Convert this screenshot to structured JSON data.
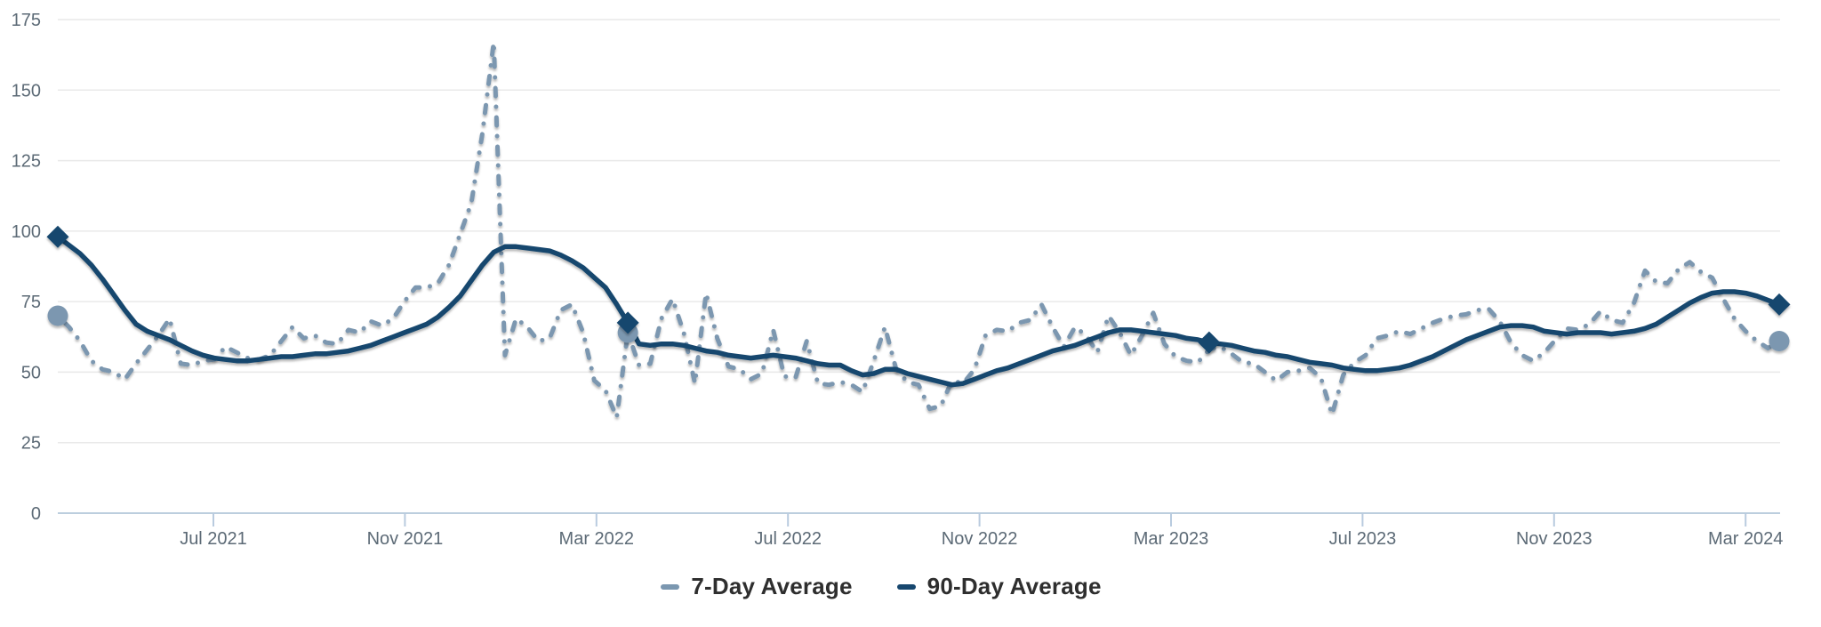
{
  "chart_data": {
    "type": "line",
    "title": "",
    "xlabel": "",
    "ylabel": "",
    "ylim": [
      0,
      175
    ],
    "grid": true,
    "legend_position": "bottom",
    "x_tick_labels": [
      "Jul 2021",
      "Nov 2021",
      "Mar 2022",
      "Jul 2022",
      "Nov 2022",
      "Mar 2023",
      "Jul 2023",
      "Nov 2023",
      "Mar 2024"
    ],
    "y_ticks": [
      0,
      25,
      50,
      75,
      100,
      125,
      150,
      175
    ],
    "x_range_note": "weekly points from late Mar 2021 to mid Mar 2024",
    "series": [
      {
        "name": "7-Day Average",
        "style": "dashed",
        "values": [
          70,
          66,
          61,
          54,
          51,
          50,
          47.5,
          53,
          58,
          63,
          69,
          53,
          52.5,
          54,
          54.5,
          59,
          57,
          55,
          54.5,
          56,
          61,
          66,
          62,
          63,
          60.5,
          60,
          65,
          64,
          68,
          66.5,
          69,
          75,
          80,
          80,
          81.5,
          88,
          99,
          110,
          135,
          167,
          56,
          69,
          66,
          61,
          62,
          72,
          74,
          64,
          47,
          43.5,
          34,
          64,
          52.5,
          53,
          69,
          76,
          64,
          46,
          78,
          62,
          52,
          51,
          47.5,
          49.5,
          65,
          48.5,
          48,
          61,
          46,
          45.5,
          46.5,
          45.5,
          43,
          54,
          66,
          51,
          46.5,
          45.5,
          37,
          38,
          47,
          46,
          51,
          63,
          65,
          64.5,
          67.5,
          68.5,
          74,
          66,
          59,
          66,
          63,
          57,
          70,
          64,
          56,
          63,
          71,
          60,
          55.5,
          54,
          53.5,
          58,
          59,
          56.5,
          53.5,
          53,
          50,
          47,
          50,
          50.5,
          51.5,
          48,
          35,
          49,
          53.5,
          56,
          62,
          63,
          64.5,
          63.5,
          65.5,
          67.5,
          69,
          70,
          70.5,
          72,
          72.5,
          68,
          60.5,
          56,
          54,
          57,
          61.5,
          65.5,
          65,
          67,
          71.5,
          68.5,
          67.5,
          74.5,
          86,
          82,
          81.5,
          86.5,
          89,
          85.5,
          83.5,
          76,
          69,
          64.5,
          61,
          58.5,
          61
        ]
      },
      {
        "name": "90-Day Average",
        "style": "solid",
        "values": [
          98,
          95,
          92,
          88,
          83,
          77.5,
          72,
          67,
          64.5,
          63,
          61.5,
          59.5,
          57.5,
          56,
          55,
          54.5,
          54,
          54,
          54.5,
          55,
          55.5,
          55.5,
          56,
          56.5,
          56.5,
          57,
          57.5,
          58.5,
          59.5,
          61,
          62.5,
          64,
          65.5,
          67,
          69.5,
          73,
          77,
          82.5,
          88,
          92.5,
          94.5,
          94.5,
          94,
          93.5,
          93,
          91.5,
          89.5,
          87,
          83.5,
          80,
          74,
          67.5,
          60,
          59.5,
          60,
          60,
          59.5,
          58.5,
          57.5,
          57,
          56,
          55.5,
          55,
          55.5,
          56,
          55.5,
          55,
          54,
          53,
          52.5,
          52.5,
          50.5,
          49,
          49.5,
          51,
          51,
          49.5,
          48.5,
          47.5,
          46.5,
          45.5,
          46,
          47.5,
          49,
          50.5,
          51.5,
          53,
          54.5,
          56,
          57.5,
          58.5,
          59.5,
          61,
          62.5,
          64,
          65,
          65,
          64.5,
          64,
          63.5,
          63,
          62,
          61.5,
          60.5,
          60,
          59.5,
          58.5,
          57.5,
          57,
          56,
          55.5,
          54.5,
          53.5,
          53,
          52.5,
          51.5,
          51,
          50.5,
          50.5,
          51,
          51.5,
          52.5,
          54,
          55.5,
          57.5,
          59.5,
          61.5,
          63,
          64.5,
          66,
          66.5,
          66.5,
          66,
          64.5,
          64,
          63.5,
          64,
          64,
          64,
          63.5,
          64,
          64.5,
          65.5,
          67,
          69.5,
          72,
          74.5,
          76.5,
          78,
          78.5,
          78.5,
          78,
          77,
          75.5,
          74
        ]
      }
    ],
    "markers": {
      "diamond_series": "90-Day Average",
      "diamond_weeks": [
        0,
        51,
        103,
        154
      ],
      "circle_series": "7-Day Average",
      "circle_weeks": [
        0,
        51,
        154
      ]
    }
  },
  "legend": {
    "items": [
      {
        "label": "7-Day Average"
      },
      {
        "label": "90-Day Average"
      }
    ]
  },
  "colors": {
    "seven_day": "#7b97b0",
    "ninety_day": "#17476e",
    "grid_line": "#e9e9e9",
    "zero_axis_line": "#bccede",
    "tick_mark": "#b9cbdf",
    "axis_label": "#5c6a76",
    "legend_text": "#2e2e2e",
    "background": "#ffffff"
  }
}
